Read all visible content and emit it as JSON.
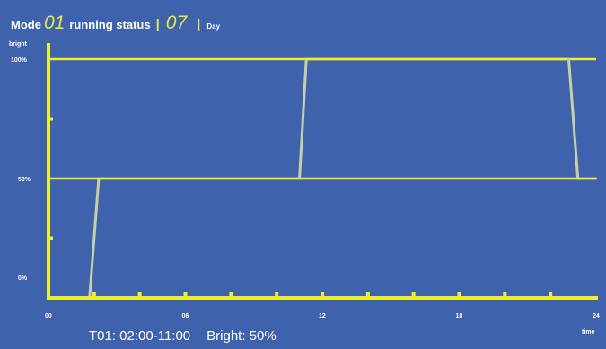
{
  "header": {
    "mode_label": "Mode",
    "mode_number": "01",
    "status_label": "running status",
    "separator": "|",
    "day_number": "07",
    "day_label": "Day"
  },
  "status": {
    "time_range": "T01: 02:00-11:00",
    "bright": "Bright: 50%"
  },
  "chart_data": {
    "type": "line",
    "title": "",
    "ylabel": "bright",
    "xlabel": "time",
    "x_tick_labels": [
      "00",
      "06",
      "12",
      "18",
      "24"
    ],
    "x_ticks": [
      0,
      6,
      12,
      18,
      24
    ],
    "y_tick_labels": [
      "0%",
      "50%",
      "100%"
    ],
    "y_ticks": [
      0,
      50,
      100
    ],
    "xlim": [
      0,
      24
    ],
    "ylim": [
      0,
      100
    ],
    "grid": false,
    "colors": {
      "background": "#3f62ad",
      "axis": "#ecf02a",
      "line": "#ecf02a",
      "transition": "#c8cfa8"
    },
    "series": [
      {
        "x": [
          0,
          1.8,
          2.2,
          11.0,
          11.3,
          22.8,
          23.2,
          24
        ],
        "y": [
          0,
          0,
          50,
          50,
          100,
          100,
          50,
          50
        ]
      }
    ],
    "reference_lines_y": [
      50,
      100
    ]
  }
}
